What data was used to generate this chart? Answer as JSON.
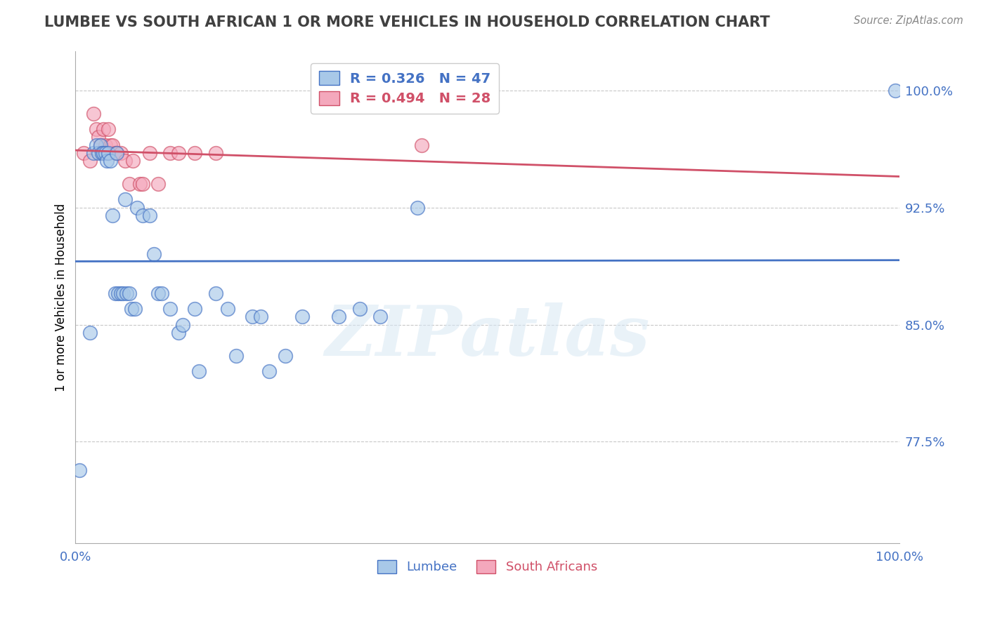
{
  "title": "LUMBEE VS SOUTH AFRICAN 1 OR MORE VEHICLES IN HOUSEHOLD CORRELATION CHART",
  "source": "Source: ZipAtlas.com",
  "ylabel": "1 or more Vehicles in Household",
  "watermark": "ZIPatlas",
  "lumbee_R": 0.326,
  "lumbee_N": 47,
  "sa_R": 0.494,
  "sa_N": 28,
  "xlim": [
    0.0,
    1.0
  ],
  "ylim": [
    0.71,
    1.025
  ],
  "yticks": [
    0.775,
    0.85,
    0.925,
    1.0
  ],
  "ytick_labels": [
    "77.5%",
    "85.0%",
    "92.5%",
    "100.0%"
  ],
  "lumbee_color": "#A8C8E8",
  "sa_color": "#F4A8BC",
  "lumbee_line_color": "#4472C4",
  "sa_line_color": "#D05068",
  "grid_color": "#C8C8C8",
  "axis_color": "#AAAAAA",
  "tick_label_color": "#4472C4",
  "title_color": "#404040",
  "lumbee_x": [
    0.005,
    0.018,
    0.022,
    0.025,
    0.028,
    0.03,
    0.032,
    0.034,
    0.036,
    0.038,
    0.04,
    0.042,
    0.045,
    0.048,
    0.05,
    0.052,
    0.055,
    0.058,
    0.06,
    0.062,
    0.065,
    0.068,
    0.072,
    0.075,
    0.082,
    0.09,
    0.095,
    0.1,
    0.105,
    0.115,
    0.125,
    0.13,
    0.145,
    0.15,
    0.17,
    0.185,
    0.195,
    0.215,
    0.225,
    0.235,
    0.255,
    0.275,
    0.32,
    0.345,
    0.37,
    0.415,
    0.995
  ],
  "lumbee_y": [
    0.757,
    0.845,
    0.96,
    0.965,
    0.96,
    0.965,
    0.96,
    0.96,
    0.96,
    0.955,
    0.96,
    0.955,
    0.92,
    0.87,
    0.96,
    0.87,
    0.87,
    0.87,
    0.93,
    0.87,
    0.87,
    0.86,
    0.86,
    0.925,
    0.92,
    0.92,
    0.895,
    0.87,
    0.87,
    0.86,
    0.845,
    0.85,
    0.86,
    0.82,
    0.87,
    0.86,
    0.83,
    0.855,
    0.855,
    0.82,
    0.83,
    0.855,
    0.855,
    0.86,
    0.855,
    0.925,
    1.0
  ],
  "sa_x": [
    0.01,
    0.018,
    0.022,
    0.025,
    0.028,
    0.03,
    0.032,
    0.034,
    0.036,
    0.038,
    0.04,
    0.042,
    0.045,
    0.048,
    0.05,
    0.055,
    0.06,
    0.065,
    0.07,
    0.078,
    0.082,
    0.09,
    0.1,
    0.115,
    0.125,
    0.145,
    0.17,
    0.42
  ],
  "sa_y": [
    0.96,
    0.955,
    0.985,
    0.975,
    0.97,
    0.965,
    0.96,
    0.975,
    0.965,
    0.96,
    0.975,
    0.965,
    0.965,
    0.96,
    0.96,
    0.96,
    0.955,
    0.94,
    0.955,
    0.94,
    0.94,
    0.96,
    0.94,
    0.96,
    0.96,
    0.96,
    0.96,
    0.965
  ]
}
